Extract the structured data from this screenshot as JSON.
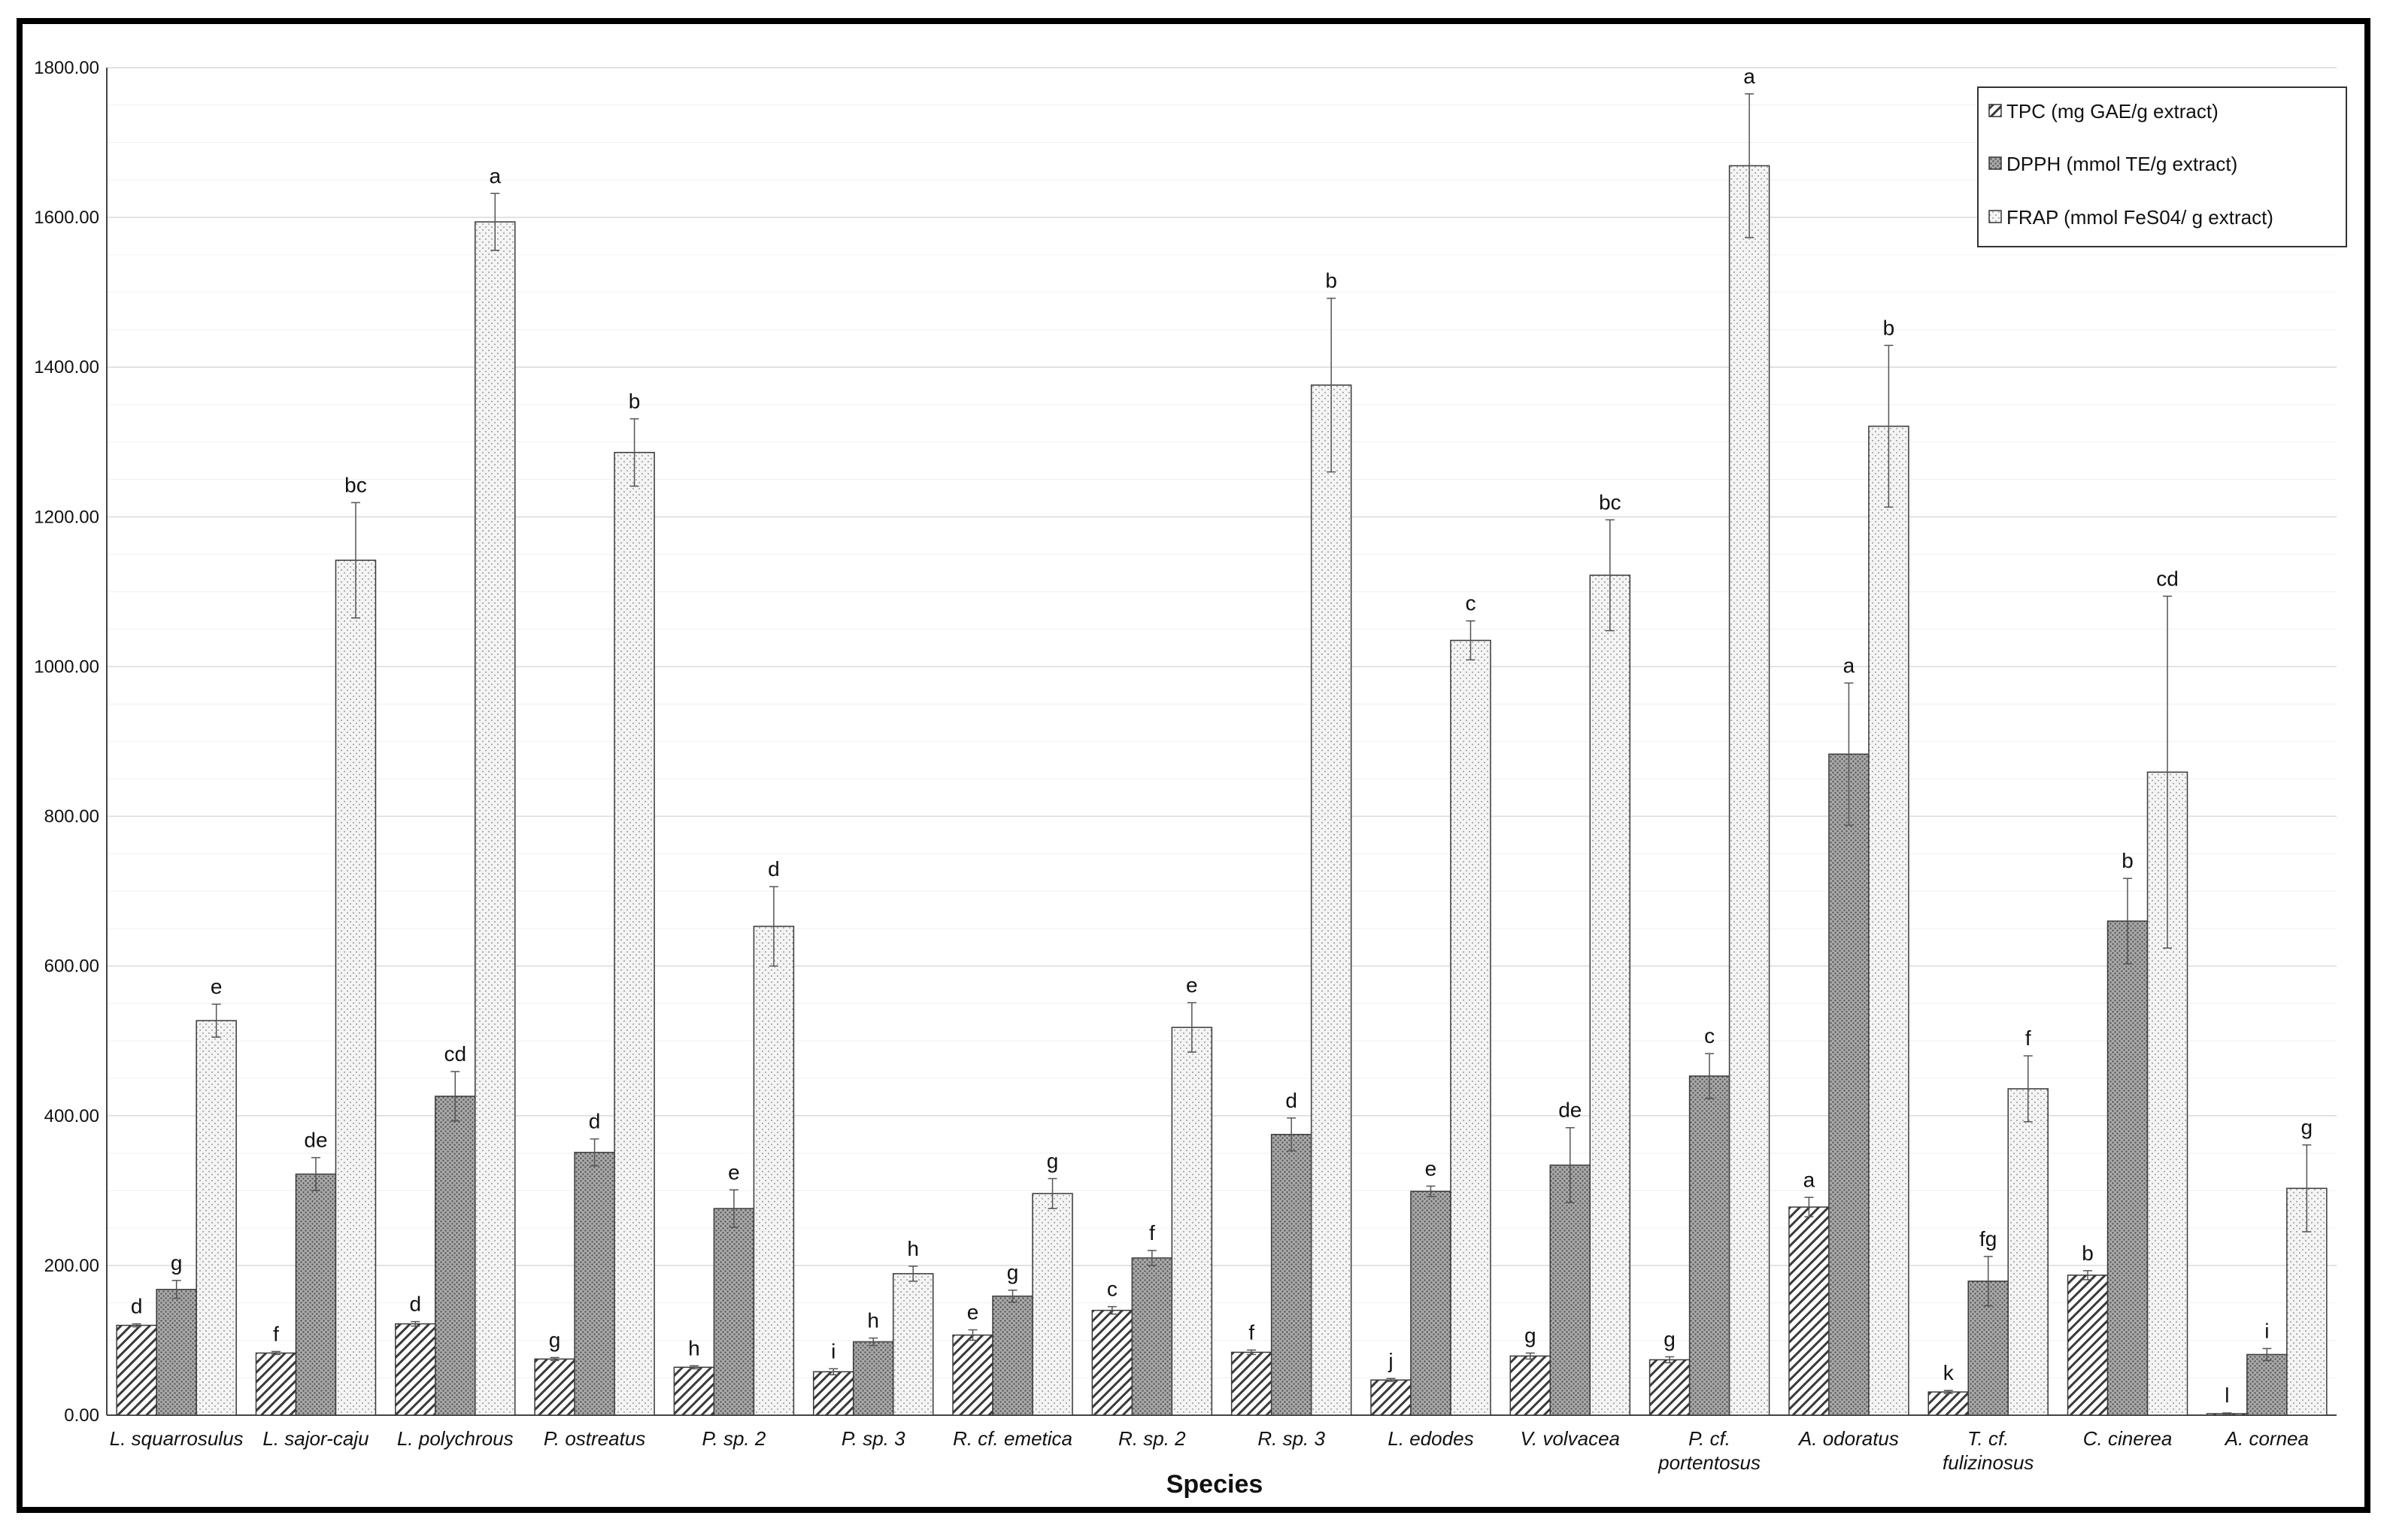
{
  "chart_data": {
    "type": "bar",
    "title": "",
    "xlabel": "Species",
    "ylabel": "",
    "ylim": [
      0,
      1800
    ],
    "y_ticks": [
      "0.00",
      "200.00",
      "400.00",
      "600.00",
      "800.00",
      "1000.00",
      "1200.00",
      "1400.00",
      "1600.00",
      "1800.00"
    ],
    "grid": true,
    "legend_position": "top-right",
    "categories": [
      [
        "L. squarrosulus"
      ],
      [
        "L. sajor-caju"
      ],
      [
        "L. polychrous"
      ],
      [
        "P. ostreatus"
      ],
      [
        "P. sp. 2"
      ],
      [
        "P. sp. 3"
      ],
      [
        "R. cf. emetica"
      ],
      [
        "R. sp. 2"
      ],
      [
        "R. sp. 3"
      ],
      [
        "L. edodes"
      ],
      [
        "V. volvacea"
      ],
      [
        "P. cf.",
        "portentosus"
      ],
      [
        "A. odoratus"
      ],
      [
        "T. cf.",
        "fulizinosus"
      ],
      [
        "C. cinerea"
      ],
      [
        "A. cornea"
      ]
    ],
    "series": [
      {
        "name": "TPC (mg GAE/g extract)",
        "pattern": "diagonal-hatch",
        "color": "#f2f2f2",
        "values": [
          120,
          83,
          122,
          75,
          64,
          58,
          107,
          140,
          84,
          47,
          79,
          74,
          278,
          31,
          187,
          2
        ],
        "errors": [
          2,
          2,
          3,
          2,
          2,
          4,
          7,
          5,
          3,
          2,
          4,
          4,
          13,
          2,
          6,
          1
        ],
        "letters": [
          "d",
          "f",
          "d",
          "g",
          "h",
          "i",
          "e",
          "c",
          "f",
          "j",
          "g",
          "g",
          "a",
          "k",
          "b",
          "l"
        ]
      },
      {
        "name": "DPPH (mmol TE/g extract)",
        "pattern": "dense-dots",
        "color": "#8f8f8f",
        "values": [
          168,
          322,
          426,
          351,
          276,
          98,
          159,
          210,
          375,
          299,
          334,
          453,
          883,
          179,
          660,
          81
        ],
        "errors": [
          12,
          22,
          33,
          18,
          25,
          5,
          8,
          10,
          22,
          7,
          50,
          30,
          95,
          33,
          57,
          8
        ],
        "letters": [
          "g",
          "de",
          "cd",
          "d",
          "e",
          "h",
          "g",
          "f",
          "d",
          "e",
          "de",
          "c",
          "a",
          "fg",
          "b",
          "i"
        ]
      },
      {
        "name": "FRAP (mmol FeS04/ g extract)",
        "pattern": "light-dots",
        "color": "#eeeeee",
        "values": [
          527,
          1142,
          1594,
          1286,
          653,
          189,
          296,
          518,
          1376,
          1035,
          1122,
          1669,
          1321,
          436,
          859,
          303
        ],
        "errors": [
          22,
          77,
          38,
          45,
          53,
          10,
          20,
          33,
          116,
          26,
          74,
          96,
          108,
          44,
          235,
          58
        ],
        "letters": [
          "e",
          "bc",
          "a",
          "b",
          "d",
          "h",
          "g",
          "e",
          "b",
          "c",
          "bc",
          "a",
          "b",
          "f",
          "cd",
          "g"
        ]
      }
    ]
  }
}
